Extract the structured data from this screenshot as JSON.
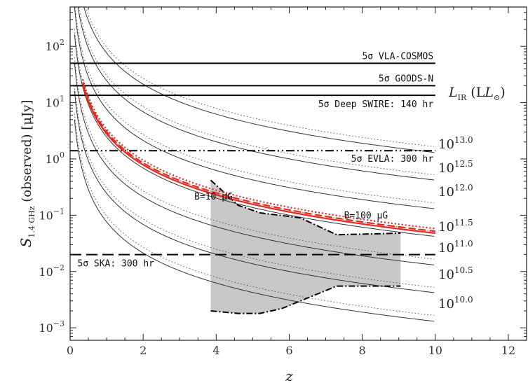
{
  "chart_data": {
    "type": "line",
    "xlabel": "z",
    "ylabel": "S1.4 GHz (observed) [μJy]",
    "xlim": [
      0,
      12.5
    ],
    "ylim": [
      0.0006,
      500
    ],
    "yscale": "log",
    "xticks": [
      "0",
      "2",
      "4",
      "6",
      "8",
      "10",
      "12"
    ],
    "yticks": [
      {
        "value": 0.001,
        "base": "10",
        "exp": "−3"
      },
      {
        "value": 0.01,
        "base": "10",
        "exp": "−2"
      },
      {
        "value": 0.1,
        "base": "10",
        "exp": "−1"
      },
      {
        "value": 1,
        "base": "10",
        "exp": "0"
      },
      {
        "value": 10,
        "base": "10",
        "exp": "1"
      },
      {
        "value": 100,
        "base": "10",
        "exp": "2"
      }
    ],
    "legend_title": {
      "main": "L",
      "sub": "IR",
      "unit": "(L",
      "unit_sub": "⊙",
      "close": ")"
    },
    "lir_levels": [
      {
        "base": "10",
        "exp": "13.0",
        "S10": 1.3,
        "dotted10": 1.65
      },
      {
        "base": "10",
        "exp": "12.5",
        "S10": 0.42,
        "dotted10": 0.52
      },
      {
        "base": "10",
        "exp": "12.0",
        "S10": 0.13,
        "dotted10": 0.165
      },
      {
        "base": "10",
        "exp": "11.5",
        "S10": 0.042,
        "dotted10": 0.052
      },
      {
        "base": "10",
        "exp": "11.0",
        "S10": 0.013,
        "dotted10": 0.0165
      },
      {
        "base": "10",
        "exp": "10.5",
        "S10": 0.0042,
        "dotted10": 0.0052
      },
      {
        "base": "10",
        "exp": "10.0",
        "S10": 0.0013,
        "dotted10": 0.00165
      }
    ],
    "sensitivity_limits": [
      {
        "label": "5σ VLA-COSMOS",
        "value": 50,
        "style": "solid"
      },
      {
        "label": "5σ GOODS-N",
        "value": 20,
        "style": "solid"
      },
      {
        "label": "5σ Deep SWIRE: 140 hr",
        "value": 13.5,
        "style": "solid"
      },
      {
        "label": "5σ EVLA: 300 hr",
        "value": 1.4,
        "style": "dashdotdot"
      },
      {
        "label": "5σ SKA: 300 hr",
        "value": 0.02,
        "style": "dashed"
      }
    ],
    "red_curves": [
      {
        "label": "B=10 μG",
        "style": "solid",
        "S10": 0.048
      },
      {
        "label": "",
        "style": "dashed",
        "S10": 0.052
      },
      {
        "label": "B=100 μG",
        "style": "dotted",
        "S10": 0.058
      }
    ],
    "shaded_region": {
      "upper": [
        [
          3.85,
          0.42
        ],
        [
          4.6,
          0.15
        ],
        [
          5.2,
          0.11
        ],
        [
          6.3,
          0.09
        ],
        [
          7.3,
          0.045
        ],
        [
          9.05,
          0.048
        ]
      ],
      "lower": [
        [
          3.85,
          0.002
        ],
        [
          4.6,
          0.0018
        ],
        [
          5.2,
          0.0018
        ],
        [
          5.8,
          0.0022
        ],
        [
          7.3,
          0.0055
        ],
        [
          9.05,
          0.0055
        ]
      ]
    }
  }
}
